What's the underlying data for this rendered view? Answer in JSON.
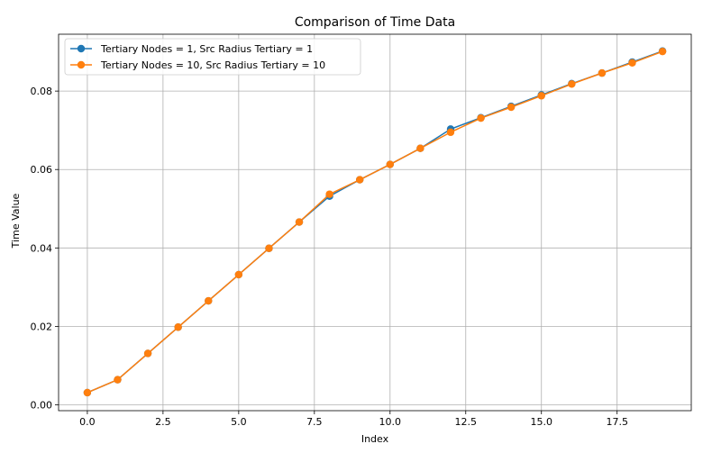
{
  "chart_data": {
    "type": "line",
    "title": "Comparison of Time Data",
    "xlabel": "Index",
    "ylabel": "Time Value",
    "xlim": [
      -0.95,
      19.95
    ],
    "ylim": [
      -0.0015,
      0.0945
    ],
    "xticks": [
      0.0,
      2.5,
      5.0,
      7.5,
      10.0,
      12.5,
      15.0,
      17.5
    ],
    "xtick_labels": [
      "0.0",
      "2.5",
      "5.0",
      "7.5",
      "10.0",
      "12.5",
      "15.0",
      "17.5"
    ],
    "yticks": [
      0.0,
      0.02,
      0.04,
      0.06,
      0.08
    ],
    "ytick_labels": [
      "0.00",
      "0.02",
      "0.04",
      "0.06",
      "0.08"
    ],
    "grid": true,
    "legend_position": "top-left",
    "x": [
      0,
      1,
      2,
      3,
      4,
      5,
      6,
      7,
      8,
      9,
      10,
      11,
      12,
      13,
      14,
      15,
      16,
      17,
      18,
      19
    ],
    "series": [
      {
        "name": "Tertiary Nodes = 1, Src Radius Tertiary = 1",
        "color": "#1f77b4",
        "values": [
          0.0031,
          0.0064,
          0.0131,
          0.0198,
          0.0265,
          0.0332,
          0.0399,
          0.0466,
          0.0532,
          0.0574,
          0.0613,
          0.0654,
          0.0703,
          0.0732,
          0.0761,
          0.079,
          0.0819,
          0.0846,
          0.0874,
          0.0902
        ]
      },
      {
        "name": "Tertiary Nodes = 10, Src Radius Tertiary = 10",
        "color": "#ff7f0e",
        "values": [
          0.0031,
          0.0064,
          0.0131,
          0.0198,
          0.0265,
          0.0332,
          0.0399,
          0.0466,
          0.0537,
          0.0574,
          0.0613,
          0.0654,
          0.0695,
          0.0731,
          0.0759,
          0.0788,
          0.0818,
          0.0846,
          0.0872,
          0.0901
        ]
      }
    ]
  }
}
